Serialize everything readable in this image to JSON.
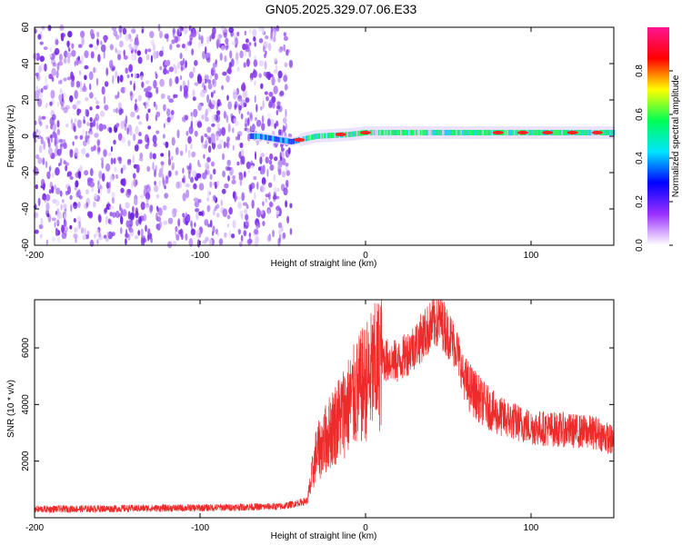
{
  "title": "GN05.2025.329.07.06.E33",
  "colors": {
    "snr_line": "#ee2b2b",
    "noise_purple": "#7a2fe8",
    "frame": "#000000"
  },
  "chart_data": [
    {
      "type": "heatmap",
      "xlabel": "Height of straight line (km)",
      "ylabel": "Frequency (Hz)",
      "xlim": [
        -200,
        150
      ],
      "ylim": [
        -60,
        60
      ],
      "xticks": [
        -200,
        -100,
        0,
        100
      ],
      "yticks": [
        60,
        40,
        20,
        0,
        -20,
        -40,
        -60
      ],
      "colorbar": {
        "label": "Normalized spectral amplitude",
        "range": [
          0,
          1
        ],
        "ticks": [
          "0.0",
          "0.2",
          "0.4",
          "0.6",
          "0.8"
        ],
        "tick_values": [
          0.0,
          0.2,
          0.4,
          0.6,
          0.8
        ],
        "colormap": [
          "#ffffff",
          "#9b30ff",
          "#0000ff",
          "#00e5ff",
          "#00ff55",
          "#ffff00",
          "#ff0000",
          "#ff1493"
        ]
      },
      "noise_region_x": [
        -200,
        -45
      ],
      "signal_band": {
        "x_start": -70,
        "x_end": 150,
        "center_freq_hz": [
          {
            "x": -65,
            "f": 0
          },
          {
            "x": -45,
            "f": -3
          },
          {
            "x": -30,
            "f": 0
          },
          {
            "x": -10,
            "f": 1
          },
          {
            "x": 0,
            "f": 2
          },
          {
            "x": 50,
            "f": 2
          },
          {
            "x": 100,
            "f": 2
          },
          {
            "x": 150,
            "f": 2
          }
        ]
      }
    },
    {
      "type": "line",
      "xlabel": "Height of straight line (km)",
      "ylabel": "SNR (10 * v/v)",
      "xlim": [
        -200,
        150
      ],
      "ylim": [
        0,
        7700
      ],
      "xticks": [
        -200,
        -100,
        0,
        100
      ],
      "yticks": [
        2000,
        4000,
        6000
      ],
      "series": [
        {
          "envelope": [
            {
              "x": -200,
              "y": 300
            },
            {
              "x": -100,
              "y": 350
            },
            {
              "x": -50,
              "y": 400
            },
            {
              "x": -35,
              "y": 600
            },
            {
              "x": -30,
              "y": 2200
            },
            {
              "x": -20,
              "y": 3200
            },
            {
              "x": -10,
              "y": 4000
            },
            {
              "x": 0,
              "y": 4800
            },
            {
              "x": 10,
              "y": 5600
            },
            {
              "x": 20,
              "y": 5500
            },
            {
              "x": 30,
              "y": 6100
            },
            {
              "x": 40,
              "y": 6800
            },
            {
              "x": 45,
              "y": 7000
            },
            {
              "x": 55,
              "y": 6000
            },
            {
              "x": 60,
              "y": 4800
            },
            {
              "x": 70,
              "y": 4100
            },
            {
              "x": 80,
              "y": 3600
            },
            {
              "x": 90,
              "y": 3400
            },
            {
              "x": 100,
              "y": 3200
            },
            {
              "x": 120,
              "y": 3100
            },
            {
              "x": 140,
              "y": 3000
            },
            {
              "x": 150,
              "y": 2700
            }
          ]
        }
      ]
    }
  ]
}
